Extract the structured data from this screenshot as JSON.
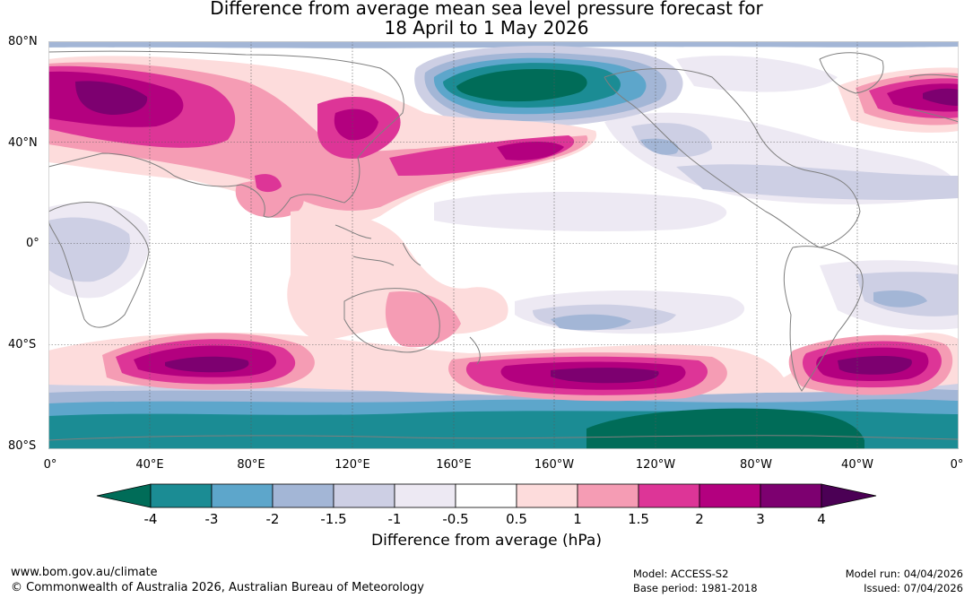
{
  "title": {
    "line1": "Difference from average mean sea level pressure forecast for",
    "line2": "18 April to 1 May 2026"
  },
  "lat_labels": [
    "80°N",
    "40°N",
    "0°",
    "40°S",
    "80°S"
  ],
  "lon_labels": [
    "0°",
    "40°E",
    "80°E",
    "120°E",
    "160°E",
    "160°W",
    "120°W",
    "80°W",
    "40°W",
    "0°"
  ],
  "colorbar": {
    "ticks": [
      "-4",
      "-3",
      "-2",
      "-1.5",
      "-1",
      "-0.5",
      "0.5",
      "1",
      "1.5",
      "2",
      "3",
      "4"
    ],
    "colors": [
      "#006c58",
      "#1b8c94",
      "#5da6cb",
      "#a3b6d6",
      "#cdcfe4",
      "#ede9f3",
      "#ffffff",
      "#fddcdc",
      "#f59cb4",
      "#dd3597",
      "#b3007f",
      "#7d0070",
      "#4b0055"
    ],
    "label": "Difference from average (hPa)"
  },
  "footer": {
    "website": "www.bom.gov.au/climate",
    "copyright": "© Commonwealth of Australia 2026, Australian Bureau of Meteorology",
    "model": "Model: ACCESS-S2",
    "base_period": "Base period: 1981-2018",
    "model_run": "Model run: 04/04/2026",
    "issued": "Issued: 07/04/2026"
  }
}
